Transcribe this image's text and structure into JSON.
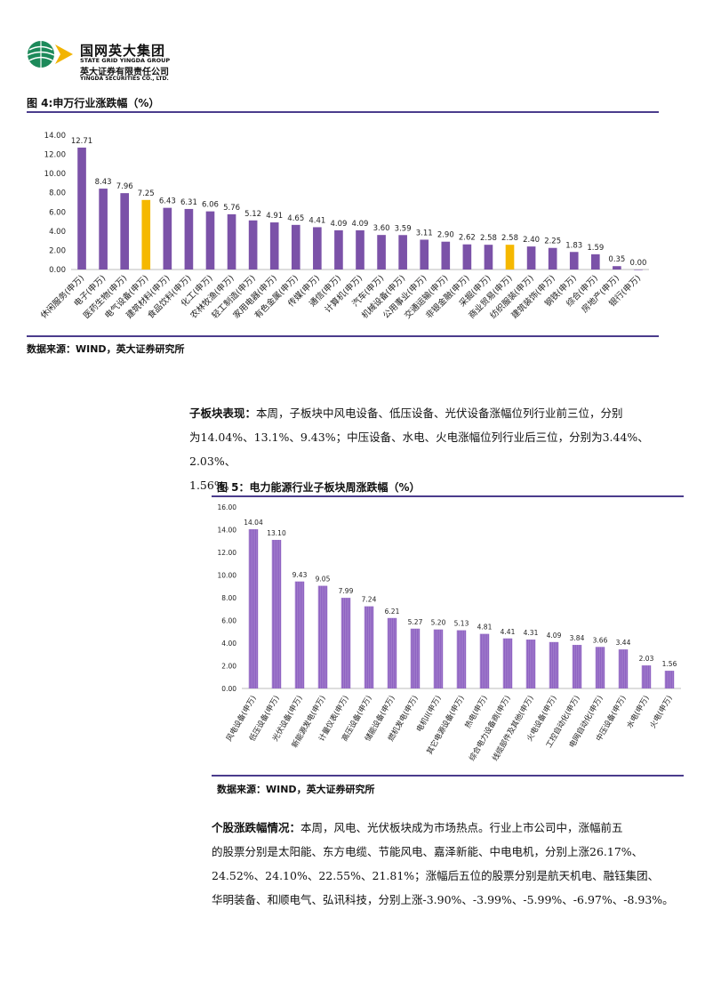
{
  "header": {
    "company_cn": "国网英大集团",
    "company_en": "STATE GRID YINGDA GROUP",
    "securities_cn": "英大证券有限责任公司",
    "securities_en": "YINGDA SECURITIES CO., LTD."
  },
  "figure4": {
    "title": "图 4:申万行业涨跌幅（%）",
    "source": "数据来源：WIND，英大证券研究所"
  },
  "figure5": {
    "title": "图 5：电力能源行业子板块周涨跌幅（%）",
    "source": "数据来源：WIND，英大证券研究所"
  },
  "para1": {
    "lead": "子板块表现：",
    "text": "本周，子板块中风电设备、低压设备、光伏设备涨幅位列行业前三位，分别为14.04%、13.1%、9.43%；中压设备、水电、火电涨幅位列行业后三位，分别为3.44%、2.03%、1.56%。",
    "line1": "本周，子板块中风电设备、低压设备、光伏设备涨幅位列行业前三位，分别",
    "line2": "为14.04%、13.1%、9.43%；中压设备、水电、火电涨幅位列行业后三位，分别为3.44%、2.03%、",
    "line3": "1.56%。"
  },
  "para2": {
    "lead": "个股涨跌幅情况：",
    "line1": "本周，风电、光伏板块成为市场热点。行业上市公司中，涨幅前五",
    "line2": "的股票分别是太阳能、东方电缆、节能风电、嘉泽新能、中电电机，分别上涨26.17%、",
    "line3": "24.52%、24.10%、22.55%、21.81%；涨幅后五位的股票分别是航天机电、融钰集团、",
    "line4": "华明装备、和顺电气、弘讯科技，分别上涨-3.90%、-3.99%、-5.99%、-6.97%、-8.93%。"
  },
  "chart_data": [
    {
      "type": "bar",
      "title": "",
      "categories": [
        "休闲服务(申万)",
        "电子(申万)",
        "医药生物(申万)",
        "电气设备(申万)",
        "建筑材料(申万)",
        "食品饮料(申万)",
        "化工(申万)",
        "农林牧渔(申万)",
        "轻工制造(申万)",
        "家用电器(申万)",
        "有色金属(申万)",
        "传媒(申万)",
        "通信(申万)",
        "计算机(申万)",
        "汽车(申万)",
        "机械设备(申万)",
        "公用事业(申万)",
        "交通运输(申万)",
        "非银金融(申万)",
        "采掘(申万)",
        "商业贸易(申万)",
        "纺织服装(申万)",
        "建筑装饰(申万)",
        "钢铁(申万)",
        "综合(申万)",
        "房地产(申万)",
        "银行(申万)"
      ],
      "values": [
        12.71,
        8.43,
        7.96,
        7.25,
        6.43,
        6.31,
        6.06,
        5.76,
        5.12,
        4.91,
        4.65,
        4.41,
        4.09,
        4.09,
        3.6,
        3.59,
        3.11,
        2.9,
        2.62,
        2.58,
        2.58,
        2.4,
        2.25,
        1.83,
        1.59,
        0.35,
        0.0
      ],
      "highlight": [
        3,
        20
      ],
      "bar_color": "#7b52a8",
      "highlight_color": "#f5b800",
      "ylim": [
        0,
        14
      ],
      "yticks": [
        "0.00",
        "2.00",
        "4.00",
        "6.00",
        "8.00",
        "10.00",
        "12.00",
        "14.00"
      ],
      "grid": false
    },
    {
      "type": "bar",
      "title": "",
      "categories": [
        "风电设备(申万)",
        "低压设备(申万)",
        "光伏设备(申万)",
        "新能源发电(申万)",
        "计量仪表(申万)",
        "高压设备(申万)",
        "储能设备(申万)",
        "燃机发电(申万)",
        "电机II(申万)",
        "其它电源设备(申万)",
        "热电(申万)",
        "综合电力设备商(申万)",
        "线缆部件及其他(申万)",
        "火电设备(申万)",
        "工控自动化(申万)",
        "电网自动化(申万)",
        "中压设备(申万)",
        "水电(申万)",
        "火电(申万)"
      ],
      "values": [
        14.04,
        13.1,
        9.43,
        9.05,
        7.99,
        7.24,
        6.21,
        5.27,
        5.2,
        5.13,
        4.81,
        4.41,
        4.31,
        4.09,
        3.84,
        3.66,
        3.44,
        2.03,
        1.56
      ],
      "bar_color": "#8a5cc0",
      "ylim": [
        0,
        16
      ],
      "yticks": [
        "0.00",
        "2.00",
        "4.00",
        "6.00",
        "8.00",
        "10.00",
        "12.00",
        "14.00",
        "16.00"
      ],
      "grid": false
    }
  ]
}
